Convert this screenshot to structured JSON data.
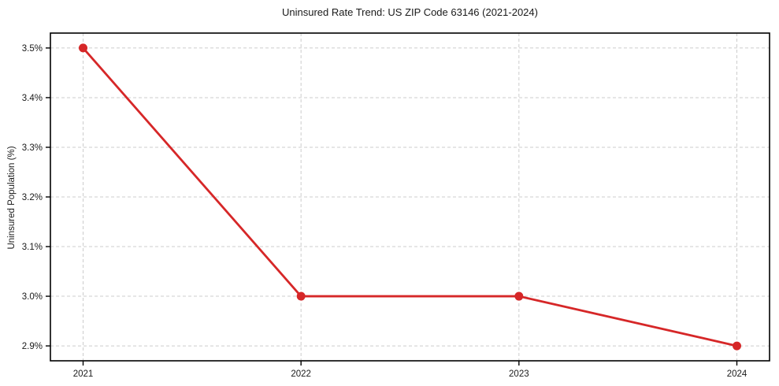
{
  "chart_data": {
    "type": "line",
    "title": "Uninsured Rate Trend: US ZIP Code 63146 (2021-2024)",
    "xlabel": "",
    "ylabel": "Uninsured Population (%)",
    "x": [
      2021,
      2022,
      2023,
      2024
    ],
    "x_tick_labels": [
      "2021",
      "2022",
      "2023",
      "2024"
    ],
    "values": [
      3.5,
      3.0,
      3.0,
      2.9
    ],
    "y_ticks": [
      2.9,
      3.0,
      3.1,
      3.2,
      3.3,
      3.4,
      3.5
    ],
    "y_tick_labels": [
      "2.9%",
      "3.0%",
      "3.1%",
      "3.2%",
      "3.3%",
      "3.4%",
      "3.5%"
    ],
    "xlim": [
      2020.85,
      2024.15
    ],
    "ylim": [
      2.87,
      3.53
    ],
    "grid": true,
    "grid_style": "dashed",
    "legend_position": "none",
    "line_color": "#d62728",
    "marker": "circle",
    "marker_color": "#d62728",
    "grid_color": "#cccccc",
    "spine_color": "#000000",
    "text_color": "#1a1a1a"
  }
}
